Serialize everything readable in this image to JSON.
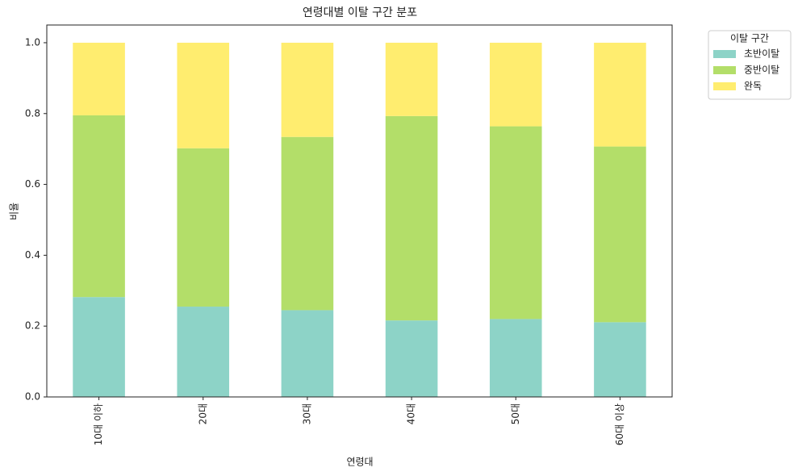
{
  "chart_data": {
    "type": "stacked_bar",
    "title": "연령대별 이탈 구간 분포",
    "xlabel": "연령대",
    "ylabel": "비율",
    "categories": [
      "10대 이하",
      "20대",
      "30대",
      "40대",
      "50대",
      "60대 이상"
    ],
    "series": [
      {
        "name": "초반이탈",
        "color": "#8dd3c7",
        "values": [
          0.282,
          0.255,
          0.245,
          0.216,
          0.22,
          0.211
        ]
      },
      {
        "name": "중반이탈",
        "color": "#b3de69",
        "values": [
          0.513,
          0.447,
          0.489,
          0.577,
          0.544,
          0.496
        ]
      },
      {
        "name": "완독",
        "color": "#ffed6f",
        "values": [
          0.205,
          0.298,
          0.266,
          0.207,
          0.236,
          0.293
        ]
      }
    ],
    "ylim": [
      0,
      1.05
    ],
    "yticks": [
      {
        "value": 0,
        "label": "0.0"
      },
      0.2,
      0.4,
      0.6,
      0.8,
      {
        "value": 1,
        "label": "1.0"
      }
    ],
    "legend_title": "이탈 구간",
    "legend": "outside-upper-right"
  }
}
